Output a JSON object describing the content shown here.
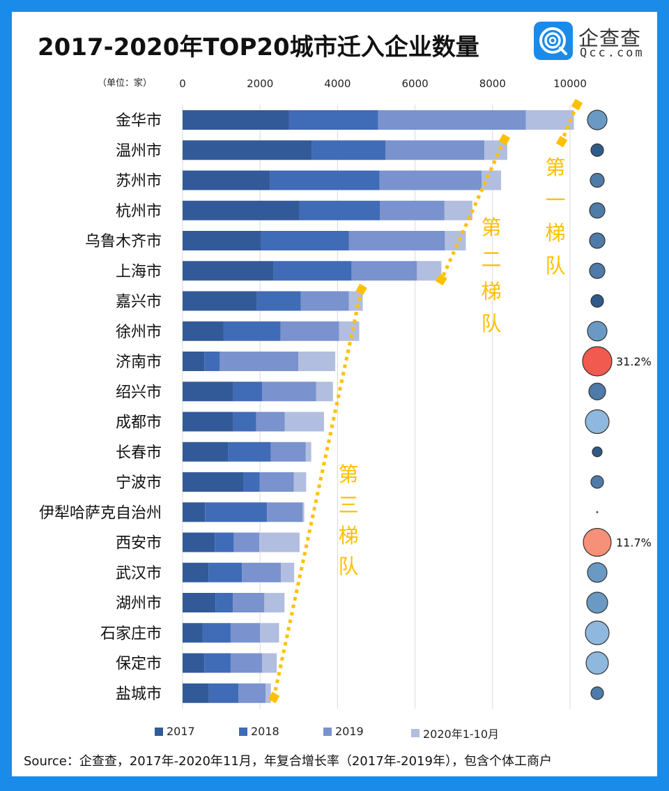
{
  "header": {
    "title": "2017-2020年TOP20城市迁入企业数量",
    "unit_label": "（单位：家）",
    "logo_cn": "企查查",
    "logo_en": "Qcc.com",
    "logo_color": "#1A8BE8"
  },
  "source_note": "Source：企查查，2017年-2020年11月，年复合增长率（2017年-2019年），包含个体工商户",
  "chart_data": {
    "type": "bar",
    "orientation": "horizontal",
    "stacked": true,
    "title": "2017-2020年TOP20城市迁入企业数量",
    "xlabel": "",
    "ylabel": "",
    "xlim": [
      0,
      10000
    ],
    "x_ticks": [
      "0",
      "2000",
      "4000",
      "6000",
      "8000",
      "10000"
    ],
    "x_tick_values": [
      0,
      2000,
      4000,
      6000,
      8000,
      10000
    ],
    "grid": true,
    "legend_position": "bottom",
    "categories": [
      "金华市",
      "温州市",
      "苏州市",
      "杭州市",
      "乌鲁木齐市",
      "上海市",
      "嘉兴市",
      "徐州市",
      "济南市",
      "绍兴市",
      "成都市",
      "长春市",
      "宁波市",
      "伊犁哈萨克自治州",
      "西安市",
      "武汉市",
      "湖州市",
      "石家庄市",
      "保定市",
      "盐城市"
    ],
    "series": [
      {
        "name": "2017",
        "color": "#325A99",
        "values": [
          2750,
          3340,
          2260,
          3020,
          2030,
          2350,
          1920,
          1060,
          560,
          1310,
          1310,
          1170,
          1580,
          580,
          830,
          670,
          850,
          520,
          560,
          680
        ]
      },
      {
        "name": "2018",
        "color": "#406BB6",
        "values": [
          2300,
          1900,
          2820,
          2070,
          2260,
          2010,
          1130,
          1470,
          400,
          740,
          590,
          1110,
          410,
          1600,
          490,
          860,
          450,
          720,
          680,
          760
        ]
      },
      {
        "name": "2019",
        "color": "#7A92CE",
        "values": [
          3810,
          2550,
          2640,
          1670,
          2480,
          1690,
          1240,
          1510,
          2030,
          1400,
          740,
          900,
          880,
          920,
          660,
          1010,
          810,
          760,
          810,
          700
        ]
      },
      {
        "name": "2020年1-10月",
        "color": "#B2BEDF",
        "values": [
          1240,
          590,
          500,
          720,
          540,
          630,
          360,
          520,
          950,
          430,
          1010,
          140,
          320,
          40,
          1040,
          340,
          520,
          490,
          380,
          140
        ]
      }
    ],
    "bubbles": {
      "description_label": "年复合增长率（2017年-2019年）",
      "relative_sizes": [
        14,
        9,
        10,
        11,
        11,
        11,
        9,
        14,
        21,
        12,
        17,
        7,
        9,
        1.5,
        20,
        14,
        15,
        17,
        16,
        9
      ],
      "colors": [
        "#6A9AC4",
        "#2F5A8A",
        "#4E7BA8",
        "#4E7BA8",
        "#4E7BA8",
        "#4E7BA8",
        "#2F5A8A",
        "#6A9AC4",
        "#F05A4F",
        "#4E7BA8",
        "#8EB8DE",
        "#2F5A8A",
        "#4E7BA8",
        "#2F5A8A",
        "#F79078",
        "#6A9AC4",
        "#6A9AC4",
        "#8EB8DE",
        "#8EB8DE",
        "#4E7BA8"
      ],
      "labels": [
        "",
        "",
        "",
        "",
        "",
        "",
        "",
        "",
        "31.2%",
        "",
        "",
        "",
        "",
        "",
        "11.7%",
        "",
        "",
        "",
        "",
        ""
      ]
    },
    "tiers": [
      {
        "label": [
          "第",
          "一",
          "梯",
          "队"
        ],
        "from_index": 0,
        "to_index": 0
      },
      {
        "label": [
          "第",
          "二",
          "梯",
          "队"
        ],
        "from_index": 1,
        "to_index": 5
      },
      {
        "label": [
          "第",
          "三",
          "梯",
          "队"
        ],
        "from_index": 6,
        "to_index": 19
      }
    ],
    "tier_color": "#FFC000"
  }
}
